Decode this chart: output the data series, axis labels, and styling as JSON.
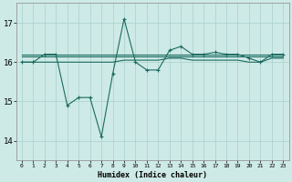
{
  "xlabel": "Humidex (Indice chaleur)",
  "bg_color": "#ceeae6",
  "grid_color": "#aed4d0",
  "line_color": "#1a6b60",
  "xlim": [
    -0.5,
    23.5
  ],
  "ylim": [
    13.5,
    17.5
  ],
  "yticks": [
    14,
    15,
    16,
    17
  ],
  "xticks": [
    0,
    1,
    2,
    3,
    4,
    5,
    6,
    7,
    8,
    9,
    10,
    11,
    12,
    13,
    14,
    15,
    16,
    17,
    18,
    19,
    20,
    21,
    22,
    23
  ],
  "lines": [
    [
      16.0,
      16.0,
      16.2,
      16.2,
      14.9,
      15.1,
      15.1,
      14.1,
      15.7,
      17.1,
      16.0,
      15.8,
      15.8,
      16.3,
      16.4,
      16.2,
      16.2,
      16.25,
      16.2,
      16.2,
      16.1,
      16.0,
      16.2,
      16.2
    ],
    [
      16.2,
      16.2,
      16.2,
      16.2,
      16.2,
      16.2,
      16.2,
      16.2,
      16.2,
      16.2,
      16.2,
      16.2,
      16.2,
      16.2,
      16.2,
      16.2,
      16.2,
      16.2,
      16.2,
      16.2,
      16.2,
      16.2,
      16.2,
      16.2
    ],
    [
      16.15,
      16.15,
      16.15,
      16.15,
      16.15,
      16.15,
      16.15,
      16.15,
      16.15,
      16.15,
      16.15,
      16.15,
      16.15,
      16.15,
      16.15,
      16.15,
      16.15,
      16.15,
      16.15,
      16.15,
      16.15,
      16.15,
      16.15,
      16.15
    ],
    [
      16.0,
      16.0,
      16.0,
      16.0,
      16.0,
      16.0,
      16.0,
      16.0,
      16.0,
      16.05,
      16.05,
      16.05,
      16.05,
      16.1,
      16.1,
      16.05,
      16.05,
      16.05,
      16.05,
      16.05,
      16.0,
      16.0,
      16.1,
      16.1
    ]
  ]
}
